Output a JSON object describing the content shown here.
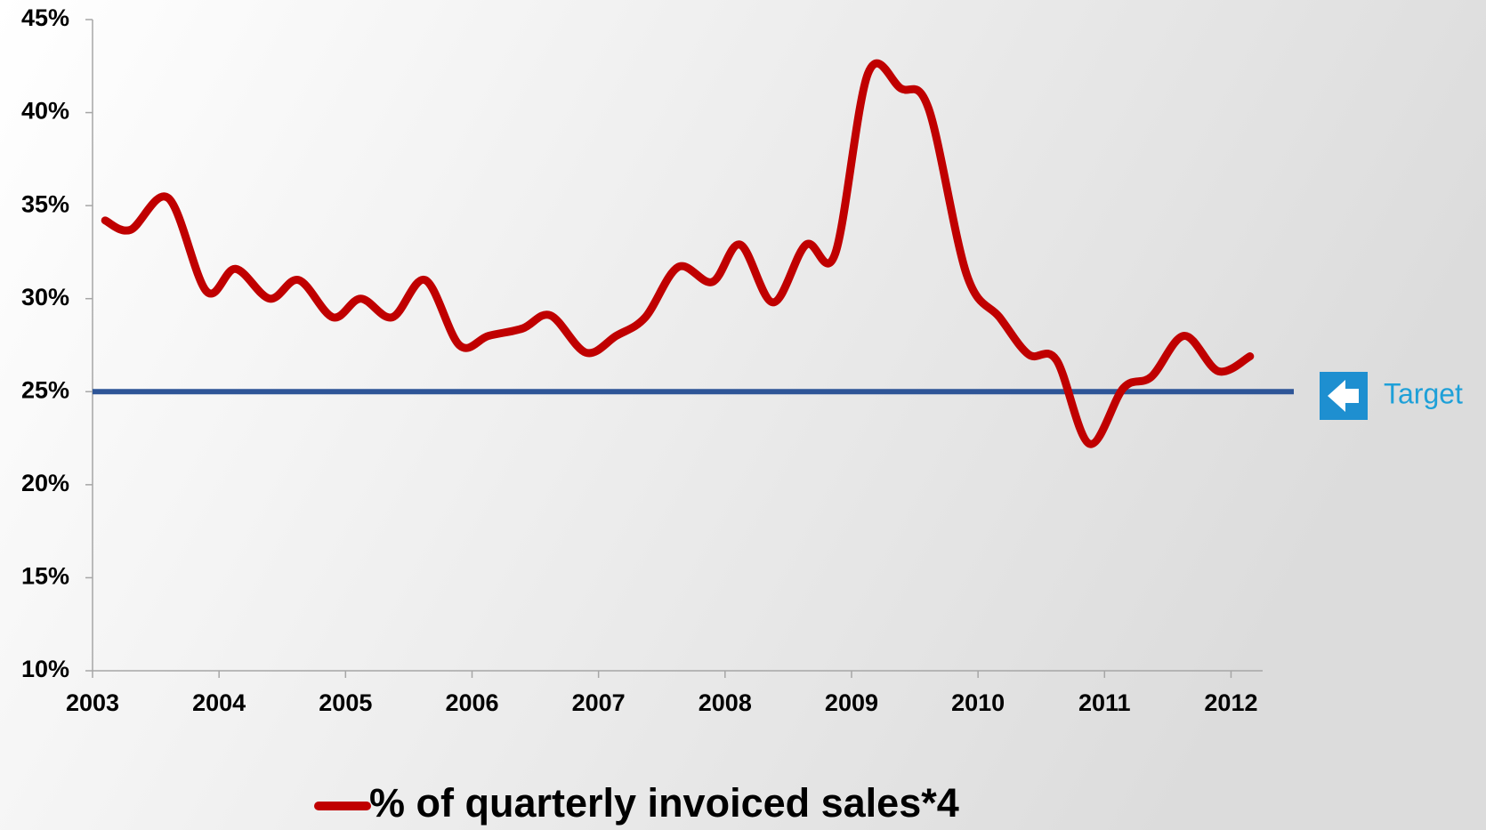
{
  "chart_data": {
    "type": "line",
    "x": [
      2003.1,
      2003.3,
      2003.6,
      2003.9,
      2004.13,
      2004.4,
      2004.63,
      2004.9,
      2005.12,
      2005.37,
      2005.63,
      2005.9,
      2006.13,
      2006.4,
      2006.62,
      2006.9,
      2007.14,
      2007.37,
      2007.63,
      2007.9,
      2008.12,
      2008.38,
      2008.64,
      2008.87,
      2009.13,
      2009.39,
      2009.61,
      2009.91,
      2010.17,
      2010.4,
      2010.62,
      2010.88,
      2011.15,
      2011.37,
      2011.63,
      2011.9,
      2012.15
    ],
    "series": [
      {
        "name": "% of quarterly invoiced sales*4",
        "color": "#c00000",
        "values": [
          34.2,
          33.7,
          35.4,
          30.4,
          31.6,
          30.0,
          31.0,
          29.0,
          30.0,
          29.0,
          31.0,
          27.5,
          28.0,
          28.4,
          29.1,
          27.1,
          28.0,
          29.0,
          31.7,
          30.9,
          32.9,
          29.8,
          32.9,
          32.4,
          42.1,
          41.3,
          40.2,
          31.3,
          29.0,
          27.0,
          26.7,
          22.2,
          25.2,
          25.8,
          28.0,
          26.1,
          26.9
        ]
      }
    ],
    "target": {
      "value": 25,
      "label": "Target",
      "color": "#2e5597"
    },
    "xlim": [
      2003,
      2012.25
    ],
    "xticks": [
      2003,
      2004,
      2005,
      2006,
      2007,
      2008,
      2009,
      2010,
      2011,
      2012
    ],
    "ylim": [
      10,
      45
    ],
    "yticks": [
      {
        "value": 10,
        "label": "10%"
      },
      {
        "value": 15,
        "label": "15%"
      },
      {
        "value": 20,
        "label": "20%"
      },
      {
        "value": 25,
        "label": "25%"
      },
      {
        "value": 30,
        "label": "30%"
      },
      {
        "value": 35,
        "label": "35%"
      },
      {
        "value": 40,
        "label": "40%"
      },
      {
        "value": 45,
        "label": "45%"
      }
    ],
    "legend": "bottom"
  }
}
